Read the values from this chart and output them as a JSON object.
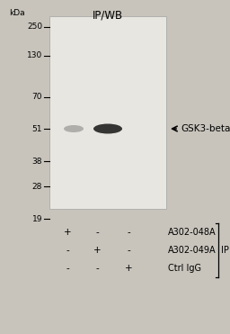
{
  "title": "IP/WB",
  "fig_bg_color": "#c8c4bc",
  "blot_bg_color": "#e8e6e0",
  "marker_labels": [
    "250",
    "130",
    "70",
    "51",
    "38",
    "28",
    "19"
  ],
  "kda_label": "kDa",
  "annotation_text": "← GSK3-beta",
  "row_labels": [
    "A302-048A",
    "A302-049A",
    "Ctrl IgG"
  ],
  "lane_signs": [
    [
      "+",
      "-",
      "-"
    ],
    [
      "-",
      "+",
      "-"
    ],
    [
      "-",
      "-",
      "+"
    ]
  ],
  "ip_label": "IP",
  "title_fontsize": 8.5,
  "marker_fontsize": 6.5,
  "annotation_fontsize": 7.5,
  "label_fontsize": 7,
  "sign_fontsize": 7.5
}
